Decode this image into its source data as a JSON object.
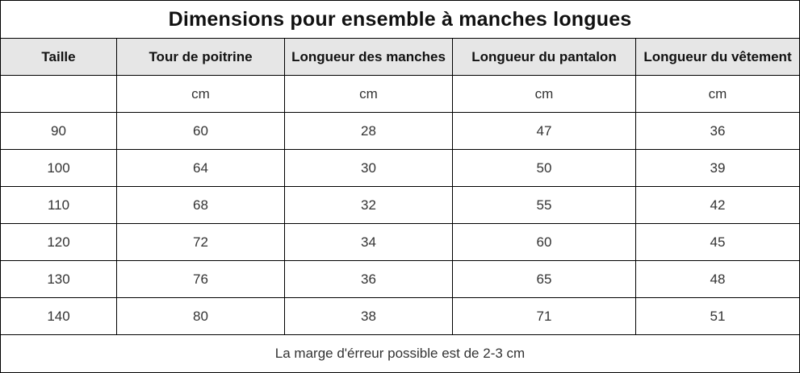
{
  "title": "Dimensions pour ensemble à manches longues",
  "headers": [
    "Taille",
    "Tour de poitrine",
    "Longueur des manches",
    "Longueur du pantalon",
    "Longueur du vêtement"
  ],
  "units": [
    "",
    "cm",
    "cm",
    "cm",
    "cm"
  ],
  "rows": [
    [
      "90",
      "60",
      "28",
      "47",
      "36"
    ],
    [
      "100",
      "64",
      "30",
      "50",
      "39"
    ],
    [
      "110",
      "68",
      "32",
      "55",
      "42"
    ],
    [
      "120",
      "72",
      "34",
      "60",
      "45"
    ],
    [
      "130",
      "76",
      "36",
      "65",
      "48"
    ],
    [
      "140",
      "80",
      "38",
      "71",
      "51"
    ]
  ],
  "footer": "La marge d'érreur possible est de 2-3 cm",
  "colors": {
    "header_background": "#e6e6e6",
    "border": "#000000",
    "text": "#333333"
  }
}
